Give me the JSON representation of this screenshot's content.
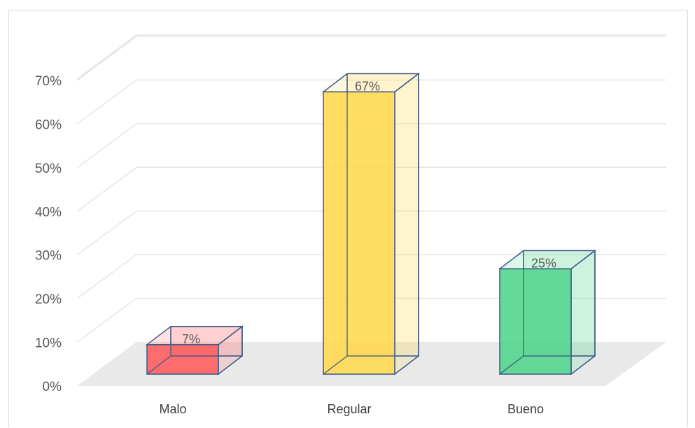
{
  "chart_data": {
    "type": "bar",
    "style": "3d-column",
    "title": "",
    "xlabel": "",
    "ylabel": "",
    "categories": [
      "Malo",
      "Regular",
      "Bueno"
    ],
    "values": [
      7,
      67,
      25
    ],
    "data_labels": [
      "7%",
      "67%",
      "25%"
    ],
    "ylim": [
      0,
      70
    ],
    "yticks": [
      0,
      10,
      20,
      30,
      40,
      50,
      60,
      70
    ],
    "ytick_labels": [
      "0%",
      "10%",
      "20%",
      "30%",
      "40%",
      "50%",
      "60%",
      "70%"
    ],
    "grid": true,
    "legend": "none",
    "colors": {
      "bars": [
        "#ff5b5b",
        "#ffd84d",
        "#4fd48a"
      ],
      "bar_edge": "#3b5a8a",
      "floor": "#e9e9e9",
      "grid": "#e6e6e6"
    }
  }
}
